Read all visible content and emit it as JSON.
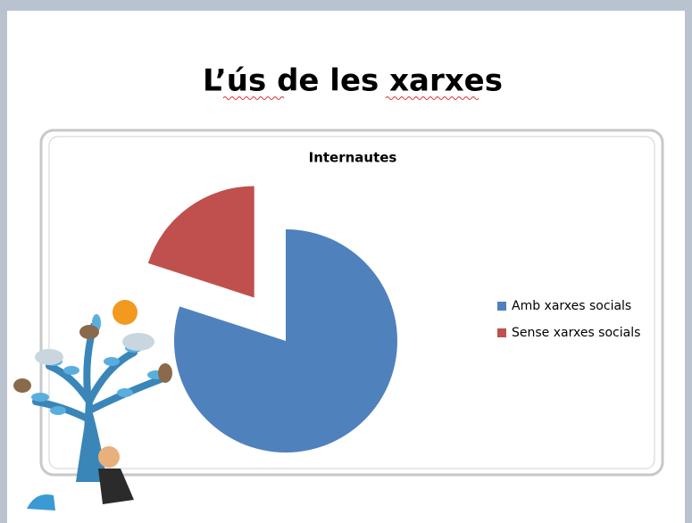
{
  "slide_title": "L’ús de les xarxes",
  "chart_data": {
    "type": "pie",
    "title": "Internautes",
    "categories": [
      "Amb xarxes socials",
      "Sense xarxes socials"
    ],
    "values": [
      80,
      20
    ],
    "colors": [
      "#4f81bd",
      "#c0504d"
    ],
    "explode": [
      false,
      true
    ],
    "legend": "right"
  }
}
